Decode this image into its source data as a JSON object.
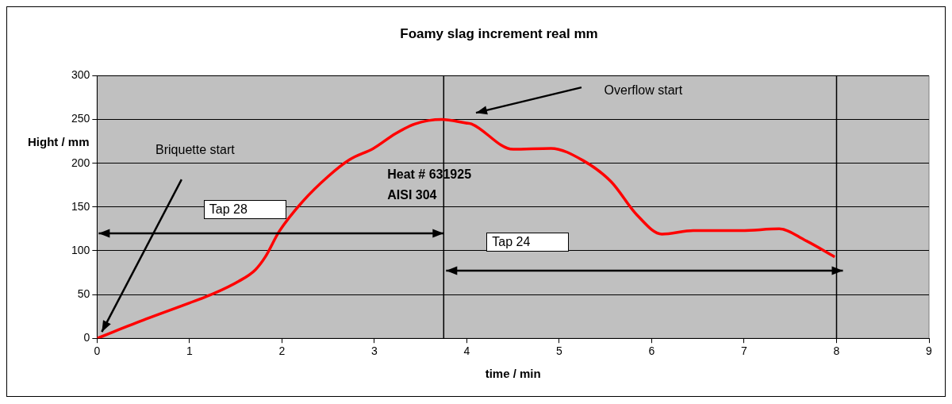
{
  "chart_data": {
    "type": "line",
    "title": "Foamy slag increment real mm",
    "xlabel": "time / min",
    "ylabel": "Hight / mm",
    "x": [
      0,
      0.53,
      0.99,
      1.26,
      1.53,
      1.71,
      1.82,
      1.97,
      2.23,
      2.5,
      2.73,
      2.99,
      3.23,
      3.44,
      3.73,
      3.99,
      4.05,
      4.5,
      4.91,
      5.26,
      5.56,
      5.84,
      6.11,
      6.45,
      6.97,
      7.38,
      7.66,
      7.98
    ],
    "values": [
      0,
      22,
      40,
      51,
      65,
      78,
      93,
      122,
      157,
      185,
      204,
      217,
      234,
      245,
      250,
      246,
      245,
      216,
      217,
      203,
      179,
      141,
      119,
      123,
      123,
      125,
      112,
      93
    ],
    "color": "#ff0000",
    "marker": "none",
    "line_style": "solid",
    "xlim": [
      0,
      9
    ],
    "xticks": [
      0,
      1,
      2,
      3,
      4,
      5,
      6,
      7,
      8,
      9
    ],
    "ylim": [
      0,
      300
    ],
    "yticks": [
      0,
      50,
      100,
      150,
      200,
      250,
      300
    ],
    "grid": "y",
    "ref_lines": [
      {
        "axis": "x",
        "value": 3.75,
        "color": "#000000"
      },
      {
        "axis": "x",
        "value": 8,
        "color": "#000000"
      }
    ],
    "annotations": [
      "Briquette start",
      "Overflow start",
      "Heat # 631925",
      "AISI 304",
      "Tap 28",
      "Tap 24"
    ]
  }
}
